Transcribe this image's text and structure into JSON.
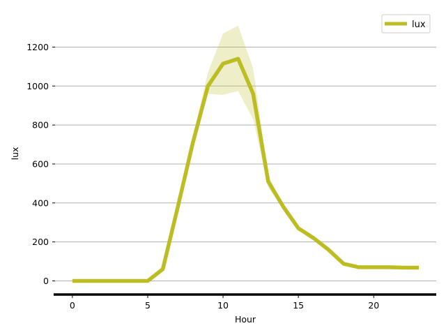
{
  "chart_data": {
    "type": "line",
    "title": "",
    "xlabel": "Hour",
    "ylabel": "lux",
    "xlim": [
      -1.15,
      24.15
    ],
    "ylim": [
      -70,
      1370
    ],
    "x_ticks": [
      0,
      5,
      10,
      15,
      20
    ],
    "y_ticks": [
      0,
      200,
      400,
      600,
      800,
      1000,
      1200
    ],
    "grid": "horizontal",
    "legend_position": "top-right",
    "line_color": "#bcbd22",
    "series": [
      {
        "name": "lux",
        "x": [
          0,
          1,
          2,
          3,
          4,
          5,
          6,
          7,
          8,
          9,
          10,
          11,
          12,
          13,
          14,
          15,
          16,
          17,
          18,
          19,
          20,
          21,
          22,
          23
        ],
        "values": [
          0,
          0,
          0,
          0,
          0,
          0,
          60,
          380,
          710,
          1000,
          1115,
          1140,
          960,
          510,
          380,
          270,
          220,
          160,
          88,
          70,
          70,
          70,
          68,
          68
        ],
        "band_upper": [
          0,
          0,
          0,
          0,
          0,
          0,
          70,
          410,
          740,
          1070,
          1270,
          1310,
          1090,
          540,
          390,
          275,
          225,
          162,
          90,
          72,
          72,
          71,
          70,
          70
        ],
        "band_lower": [
          0,
          0,
          0,
          0,
          0,
          0,
          50,
          350,
          690,
          960,
          955,
          975,
          830,
          480,
          370,
          265,
          215,
          158,
          86,
          68,
          68,
          68,
          66,
          66
        ]
      }
    ]
  }
}
